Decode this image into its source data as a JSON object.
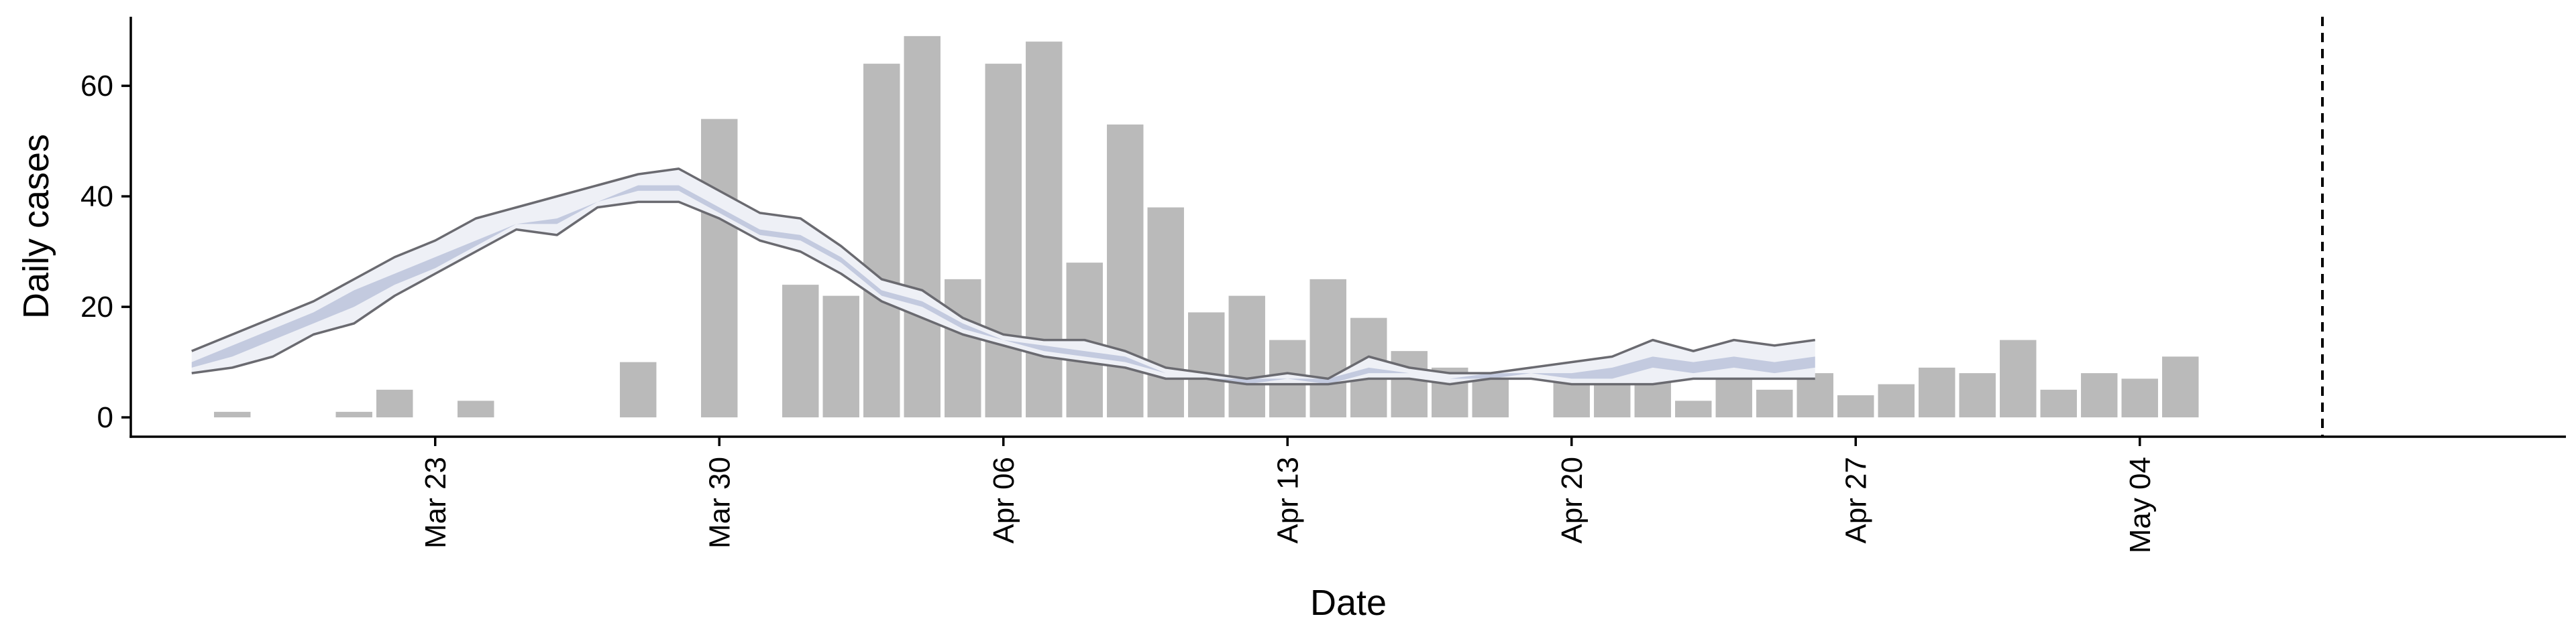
{
  "chart_data": {
    "type": "bar",
    "xlabel": "Date",
    "ylabel": "Daily cases",
    "ylim": [
      -3.5,
      72.5
    ],
    "yticks": [
      0,
      20,
      40,
      60
    ],
    "xticks": [
      {
        "date": "2020-03-23",
        "label": "Mar 23"
      },
      {
        "date": "2020-03-30",
        "label": "Mar 30"
      },
      {
        "date": "2020-04-06",
        "label": "Apr 06"
      },
      {
        "date": "2020-04-13",
        "label": "Apr 13"
      },
      {
        "date": "2020-04-20",
        "label": "Apr 20"
      },
      {
        "date": "2020-04-27",
        "label": "Apr 27"
      },
      {
        "date": "2020-05-04",
        "label": "May 04"
      }
    ],
    "xlim": [
      "2020-03-15T12:00",
      "2020-05-14T12:00"
    ],
    "vline_date": "2020-05-08T12:00",
    "grid": false,
    "bars": {
      "dates": [
        "2020-03-17",
        "2020-03-18",
        "2020-03-19",
        "2020-03-20",
        "2020-03-21",
        "2020-03-22",
        "2020-03-23",
        "2020-03-24",
        "2020-03-25",
        "2020-03-26",
        "2020-03-27",
        "2020-03-28",
        "2020-03-29",
        "2020-03-30",
        "2020-03-31",
        "2020-04-01",
        "2020-04-02",
        "2020-04-03",
        "2020-04-04",
        "2020-04-05",
        "2020-04-06",
        "2020-04-07",
        "2020-04-08",
        "2020-04-09",
        "2020-04-10",
        "2020-04-11",
        "2020-04-12",
        "2020-04-13",
        "2020-04-14",
        "2020-04-15",
        "2020-04-16",
        "2020-04-17",
        "2020-04-18",
        "2020-04-19",
        "2020-04-20",
        "2020-04-21",
        "2020-04-22",
        "2020-04-23",
        "2020-04-24",
        "2020-04-25",
        "2020-04-26",
        "2020-04-27",
        "2020-04-28",
        "2020-04-29",
        "2020-04-30",
        "2020-05-01",
        "2020-05-02",
        "2020-05-03",
        "2020-05-04",
        "2020-05-05",
        "2020-05-06",
        "2020-05-07",
        "2020-05-08"
      ],
      "values": [
        0,
        1,
        0,
        0,
        1,
        5,
        0,
        3,
        0,
        0,
        0,
        10,
        0,
        54,
        0,
        24,
        22,
        64,
        69,
        25,
        64,
        68,
        28,
        53,
        38,
        19,
        22,
        14,
        25,
        18,
        12,
        9,
        8,
        0,
        7,
        9,
        10,
        3,
        12,
        5,
        8,
        4,
        6,
        9,
        8,
        14,
        5,
        8,
        7,
        11,
        0,
        0,
        0
      ],
      "color": "#bababa"
    },
    "series": [
      {
        "dates": [
          "2020-03-17",
          "2020-03-18",
          "2020-03-19",
          "2020-03-20",
          "2020-03-21",
          "2020-03-22",
          "2020-03-23",
          "2020-03-24",
          "2020-03-25",
          "2020-03-26",
          "2020-03-27",
          "2020-03-28",
          "2020-03-29",
          "2020-03-30",
          "2020-03-31",
          "2020-04-01",
          "2020-04-02",
          "2020-04-03",
          "2020-04-04",
          "2020-04-05",
          "2020-04-06",
          "2020-04-07",
          "2020-04-08",
          "2020-04-09",
          "2020-04-10",
          "2020-04-11",
          "2020-04-12",
          "2020-04-13",
          "2020-04-14",
          "2020-04-15",
          "2020-04-16",
          "2020-04-17",
          "2020-04-18",
          "2020-04-19",
          "2020-04-20",
          "2020-04-21",
          "2020-04-22",
          "2020-04-23",
          "2020-04-24",
          "2020-04-25",
          "2020-04-26",
          "2020-04-27",
          "2020-04-28",
          "2020-04-29",
          "2020-04-30"
        ],
        "outer_upper": [
          12,
          15,
          18,
          21,
          25,
          29,
          32,
          36,
          38,
          40,
          42,
          44,
          45,
          41,
          37,
          36,
          31,
          25,
          23,
          18,
          15,
          14,
          14,
          12,
          9,
          8,
          7,
          8,
          7,
          11,
          9,
          8,
          8,
          9,
          10,
          11,
          14,
          12,
          14,
          13,
          14,
          null,
          null,
          null,
          null
        ],
        "outer_lower": [
          8,
          9,
          11,
          15,
          17,
          22,
          26,
          30,
          34,
          33,
          38,
          39,
          39,
          36,
          32,
          30,
          26,
          21,
          18,
          15,
          13,
          11,
          10,
          9,
          7,
          7,
          6,
          6,
          6,
          7,
          7,
          6,
          7,
          7,
          6,
          6,
          6,
          7,
          7,
          7,
          7,
          null,
          null,
          null,
          null
        ],
        "inner_upper": [
          10,
          13,
          16,
          19,
          23,
          26,
          29,
          32,
          35,
          36,
          39,
          42,
          42,
          38,
          34,
          33,
          29,
          23,
          21,
          17,
          14,
          13,
          12,
          11,
          8,
          7,
          7,
          7,
          7,
          9,
          8,
          7,
          8,
          8,
          8,
          9,
          11,
          10,
          11,
          10,
          11,
          null,
          null,
          null,
          null
        ],
        "inner_lower": [
          9,
          11,
          14,
          17,
          20,
          24,
          27,
          31,
          35,
          35,
          39,
          41,
          41,
          37,
          33,
          32,
          28,
          22,
          20,
          16,
          14,
          12,
          11,
          10,
          8,
          7,
          6,
          7,
          6,
          8,
          8,
          7,
          7,
          8,
          7,
          7,
          9,
          8,
          9,
          8,
          9,
          null,
          null,
          null,
          null
        ],
        "band_outer_color": "#eef0f6",
        "band_inner_color": "#c3cadf",
        "line_color": "#6a6a70"
      }
    ]
  }
}
